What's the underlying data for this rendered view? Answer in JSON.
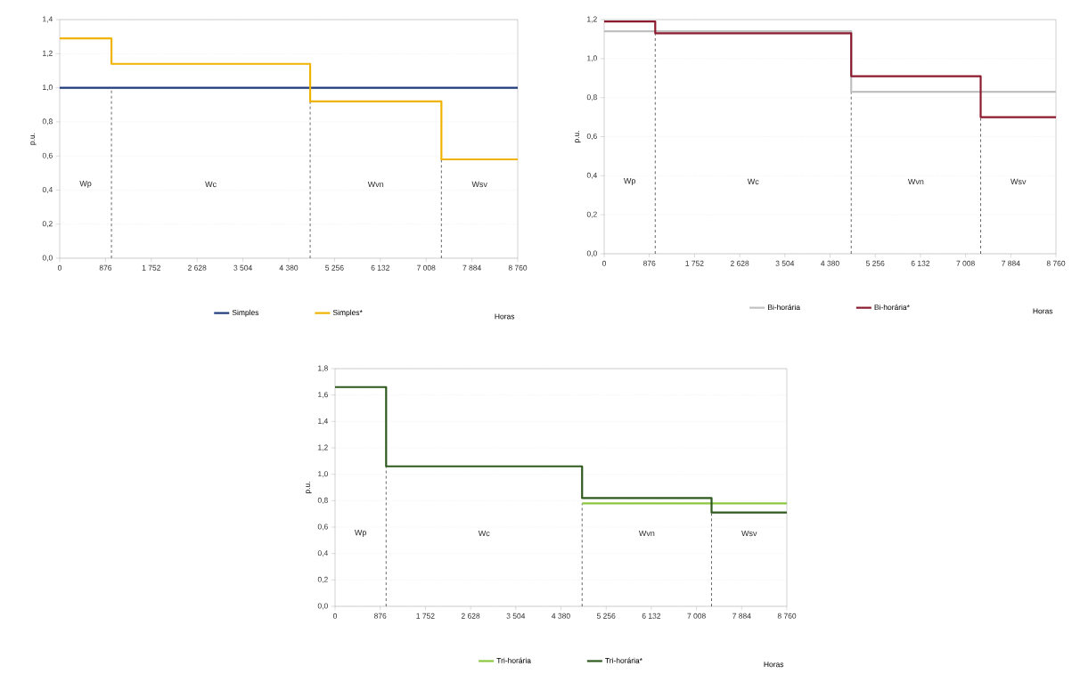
{
  "chart_data": [
    {
      "type": "step",
      "ylabel": "p.u.",
      "xlabel": "Horas",
      "x": [
        0,
        990,
        4790,
        7300,
        8760
      ],
      "xlim": [
        0,
        8760
      ],
      "ylim": [
        0,
        1.4
      ],
      "xticks": [
        0,
        876,
        {
          "value": 1752,
          "label": "1 752"
        },
        {
          "value": 2628,
          "label": "2 628"
        },
        {
          "value": 3504,
          "label": "3 504"
        },
        {
          "value": 4380,
          "label": "4 380"
        },
        {
          "value": 5256,
          "label": "5 256"
        },
        {
          "value": 6132,
          "label": "6 132"
        },
        {
          "value": 7008,
          "label": "7 008"
        },
        {
          "value": 7884,
          "label": "7 884"
        },
        {
          "value": 8760,
          "label": "8 760"
        }
      ],
      "yticks": [
        {
          "value": 0,
          "label": "0,0"
        },
        {
          "value": 0.2,
          "label": "0,2"
        },
        {
          "value": 0.4,
          "label": "0,4"
        },
        {
          "value": 0.6,
          "label": "0,6"
        },
        {
          "value": 0.8,
          "label": "0,8"
        },
        {
          "value": 1.0,
          "label": "1,0"
        },
        {
          "value": 1.2,
          "label": "1,2"
        },
        {
          "value": 1.4,
          "label": "1,4"
        }
      ],
      "grid": "y",
      "legend": "bottom",
      "line_style": "solid",
      "marker": "none",
      "series": [
        {
          "name": "Simples",
          "color": "#1f3a7a",
          "values": [
            1.0,
            1.0,
            1.0,
            1.0,
            1.0
          ]
        },
        {
          "name": "Simples*",
          "color": "#f0b400",
          "values": [
            1.29,
            1.14,
            0.92,
            0.58,
            0.58
          ]
        }
      ],
      "ref_lines": [
        {
          "axis": "x",
          "value": 990,
          "color": "#000000",
          "line_style": "dashed"
        },
        {
          "axis": "x",
          "value": 4790,
          "color": "#000000",
          "line_style": "dashed"
        },
        {
          "axis": "x",
          "value": 7300,
          "color": "#000000",
          "line_style": "dashed"
        }
      ],
      "annotations": [
        "Wp",
        "Wc",
        "Wvn",
        "Wsv"
      ]
    },
    {
      "type": "step",
      "ylabel": "p.u.",
      "xlabel": "Horas",
      "x": [
        0,
        990,
        4790,
        7300,
        8760
      ],
      "xlim": [
        0,
        8760
      ],
      "ylim": [
        0,
        1.2
      ],
      "xticks": [
        0,
        876,
        {
          "value": 1752,
          "label": "1 752"
        },
        {
          "value": 2628,
          "label": "2 628"
        },
        {
          "value": 3504,
          "label": "3 504"
        },
        {
          "value": 4380,
          "label": "4 380"
        },
        {
          "value": 5256,
          "label": "5 256"
        },
        {
          "value": 6132,
          "label": "6 132"
        },
        {
          "value": 7008,
          "label": "7 008"
        },
        {
          "value": 7884,
          "label": "7 884"
        },
        {
          "value": 8760,
          "label": "8 760"
        }
      ],
      "yticks": [
        {
          "value": 0,
          "label": "0,0"
        },
        {
          "value": 0.2,
          "label": "0,2"
        },
        {
          "value": 0.4,
          "label": "0,4"
        },
        {
          "value": 0.6,
          "label": "0,6"
        },
        {
          "value": 0.8,
          "label": "0,8"
        },
        {
          "value": 1.0,
          "label": "1,0"
        },
        {
          "value": 1.2,
          "label": "1,2"
        }
      ],
      "grid": "y",
      "legend": "bottom",
      "line_style": "solid",
      "marker": "none",
      "series": [
        {
          "name": "Bi-horária",
          "color": "#c0c0c0",
          "values": [
            1.14,
            1.14,
            0.83,
            0.83,
            0.83
          ]
        },
        {
          "name": "Bi-horária*",
          "color": "#8b1a2e",
          "values": [
            1.19,
            1.13,
            0.91,
            0.7,
            0.7
          ]
        }
      ],
      "ref_lines": [
        {
          "axis": "x",
          "value": 990,
          "color": "#000000",
          "line_style": "dashed"
        },
        {
          "axis": "x",
          "value": 4790,
          "color": "#000000",
          "line_style": "dashed"
        },
        {
          "axis": "x",
          "value": 7300,
          "color": "#000000",
          "line_style": "dashed"
        }
      ],
      "annotations": [
        "Wp",
        "Wc",
        "Wvn",
        "Wsv"
      ]
    },
    {
      "type": "step",
      "ylabel": "p.u.",
      "xlabel": "Horas",
      "x": [
        0,
        990,
        4790,
        7300,
        8760
      ],
      "xlim": [
        0,
        8760
      ],
      "ylim": [
        0,
        1.8
      ],
      "xticks": [
        0,
        876,
        {
          "value": 1752,
          "label": "1 752"
        },
        {
          "value": 2628,
          "label": "2 628"
        },
        {
          "value": 3504,
          "label": "3 504"
        },
        {
          "value": 4380,
          "label": "4 380"
        },
        {
          "value": 5256,
          "label": "5 256"
        },
        {
          "value": 6132,
          "label": "6 132"
        },
        {
          "value": 7008,
          "label": "7 008"
        },
        {
          "value": 7884,
          "label": "7 884"
        },
        {
          "value": 8760,
          "label": "8 760"
        }
      ],
      "yticks": [
        {
          "value": 0,
          "label": "0,0"
        },
        {
          "value": 0.2,
          "label": "0,2"
        },
        {
          "value": 0.4,
          "label": "0,4"
        },
        {
          "value": 0.6,
          "label": "0,6"
        },
        {
          "value": 0.8,
          "label": "0,8"
        },
        {
          "value": 1.0,
          "label": "1,0"
        },
        {
          "value": 1.2,
          "label": "1,2"
        },
        {
          "value": 1.4,
          "label": "1,4"
        },
        {
          "value": 1.6,
          "label": "1,6"
        },
        {
          "value": 1.8,
          "label": "1,8"
        }
      ],
      "grid": "y",
      "legend": "bottom",
      "line_style": "solid",
      "marker": "none",
      "series": [
        {
          "name": "Tri-horária",
          "color": "#8cc63f",
          "values": [
            null,
            null,
            0.78,
            0.78,
            0.78
          ]
        },
        {
          "name": "Tri-horária*",
          "color": "#2e5a1e",
          "values": [
            1.66,
            1.06,
            0.82,
            0.71,
            0.71
          ]
        }
      ],
      "ref_lines": [
        {
          "axis": "x",
          "value": 990,
          "color": "#000000",
          "line_style": "dashed"
        },
        {
          "axis": "x",
          "value": 4790,
          "color": "#000000",
          "line_style": "dashed"
        },
        {
          "axis": "x",
          "value": 7300,
          "color": "#000000",
          "line_style": "dashed"
        }
      ],
      "annotations": [
        "Wp",
        "Wc",
        "Wvn",
        "Wsv"
      ]
    }
  ]
}
